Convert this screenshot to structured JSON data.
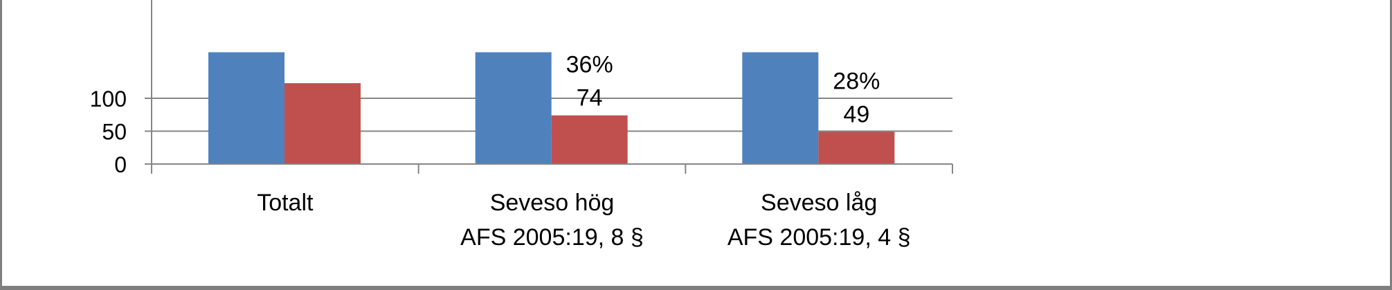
{
  "chart_data": {
    "type": "bar",
    "title": "",
    "xlabel": "",
    "ylabel": "",
    "categories": [
      [
        "Totalt"
      ],
      [
        "Seveso hög",
        "AFS 2005:19, 8 §"
      ],
      [
        "Seveso låg",
        "AFS 2005:19, 4 §"
      ]
    ],
    "series": [
      {
        "values": [
          170,
          170,
          170
        ],
        "color": "#4f81bd"
      },
      {
        "values": [
          123,
          74,
          49
        ],
        "color": "#c0504d"
      }
    ],
    "data_labels": [
      {
        "category": 1,
        "lines": [
          "36%",
          "74"
        ]
      },
      {
        "category": 2,
        "lines": [
          "28%",
          "49"
        ]
      }
    ],
    "yticks": [
      0,
      50,
      100
    ],
    "ylim": [
      0,
      128
    ],
    "grid": true,
    "legend": "none"
  }
}
